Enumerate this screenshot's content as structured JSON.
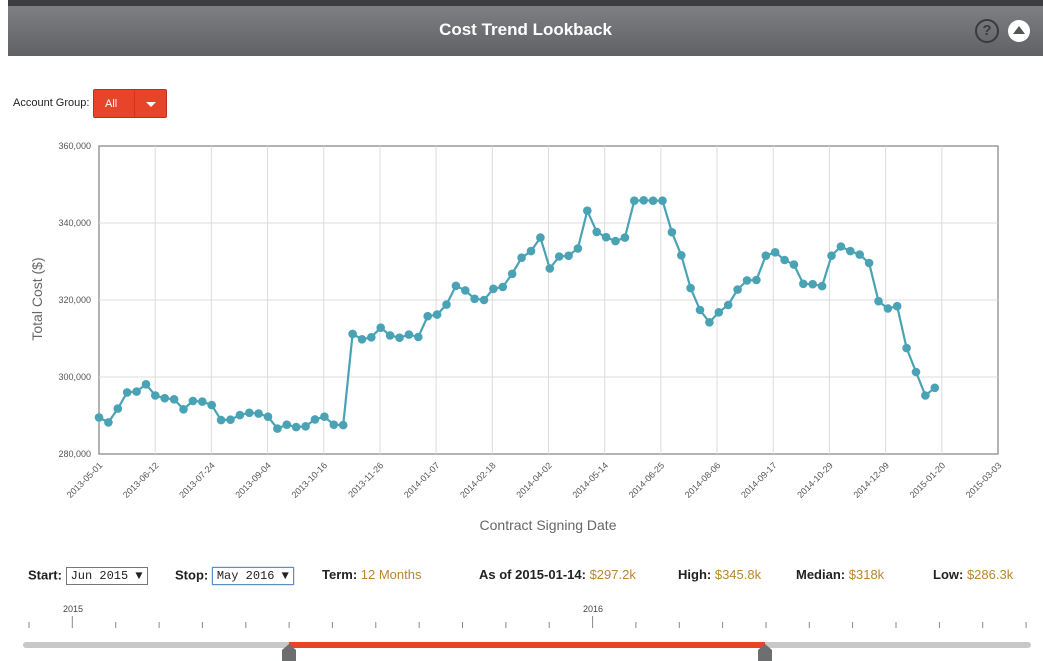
{
  "header": {
    "title": "Cost Trend Lookback",
    "help_icon": "?",
    "collapse_icon": "chevron-up-icon"
  },
  "filter": {
    "label": "Account Group:",
    "value": "All",
    "accent": "#e8442a"
  },
  "chart_data": {
    "type": "line",
    "ylabel": "Total Cost ($)",
    "xlabel": "Contract Signing Date",
    "ylim": [
      280000,
      360000
    ],
    "yticks": [
      "280,000",
      "300,000",
      "320,000",
      "340,000",
      "360,000"
    ],
    "xticks": [
      "2013-05-01",
      "2013-06-12",
      "2013-07-24",
      "2013-09-04",
      "2013-10-16",
      "2013-11-26",
      "2014-01-07",
      "2014-02-18",
      "2014-04-02",
      "2014-05-14",
      "2014-06-25",
      "2014-08-06",
      "2014-09-17",
      "2014-10-29",
      "2014-12-09",
      "2015-01-20",
      "2015-03-03"
    ],
    "grid": true,
    "line_color": "#4aa3b5",
    "series": [
      {
        "values": [
          289500,
          288200,
          291800,
          296000,
          296200,
          298100,
          295200,
          294500,
          294200,
          291600,
          293800,
          293600,
          292700,
          288800,
          288900,
          290100,
          290700,
          290500,
          289700,
          286600,
          287600,
          287000,
          287200,
          289000,
          289700,
          287600,
          287500,
          311200,
          309800,
          310300,
          312800,
          310800,
          310200,
          311000,
          310400,
          315800,
          316200,
          318800,
          323700,
          322500,
          320300,
          320000,
          322900,
          323400,
          326800,
          331000,
          332700,
          336200,
          328200,
          331300,
          331500,
          333400,
          343200,
          337700,
          336300,
          335300,
          336200,
          345800,
          345900,
          345800,
          345800,
          337600,
          331600,
          323100,
          317400,
          314200,
          316800,
          318700,
          322700,
          325100,
          325200,
          331500,
          332400,
          330400,
          329200,
          324200,
          324100,
          323600,
          331500,
          333900,
          332700,
          331800,
          329600,
          319700,
          317800,
          318400,
          307500,
          301300,
          295200,
          297200
        ]
      }
    ]
  },
  "controls": {
    "start_label": "Start:",
    "start_value": "Jun 2015 ▼",
    "stop_label": "Stop:",
    "stop_value": "May 2016 ▼",
    "term_label": "Term:",
    "term_value": "12 Months",
    "asof_label": "As of 2015-01-14:",
    "asof_value": "$297.2k",
    "high_label": "High:",
    "high_value": "$345.8k",
    "median_label": "Median:",
    "median_value": "$318k",
    "low_label": "Low:",
    "low_value": "$286.3k"
  },
  "timeline": {
    "year_labels": [
      "2015",
      "2016"
    ],
    "range_color": "#e8442a"
  }
}
